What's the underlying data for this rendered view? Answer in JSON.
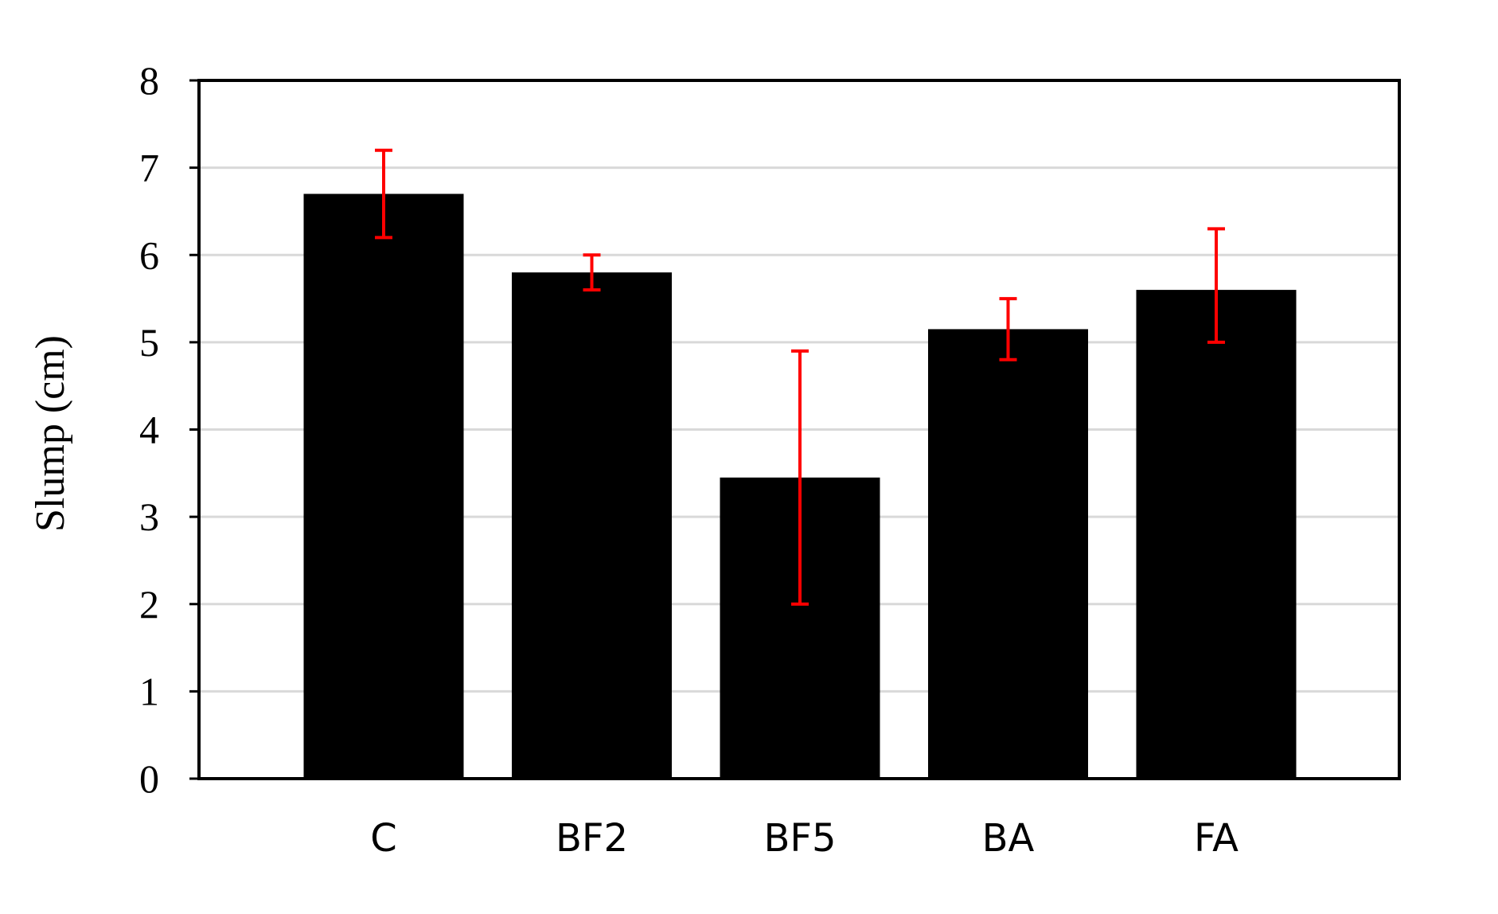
{
  "chart_data": {
    "type": "bar",
    "title": "",
    "xlabel": "",
    "ylabel": "Slump (cm)",
    "categories": [
      "C",
      "BF2",
      "BF5",
      "BA",
      "FA"
    ],
    "values": [
      6.7,
      5.8,
      3.45,
      5.15,
      5.6
    ],
    "error_low": [
      6.2,
      5.6,
      2.0,
      4.8,
      5.0
    ],
    "error_high": [
      7.2,
      6.0,
      4.9,
      5.5,
      6.3
    ],
    "ylim": [
      0,
      8
    ],
    "yticks": [
      "0",
      "1",
      "2",
      "3",
      "4",
      "5",
      "6",
      "7",
      "8"
    ],
    "grid": true,
    "colors": {
      "bar": "#000000",
      "error_bar": "#ff0000",
      "grid": "#d9d9d9",
      "frame": "#000000"
    }
  }
}
